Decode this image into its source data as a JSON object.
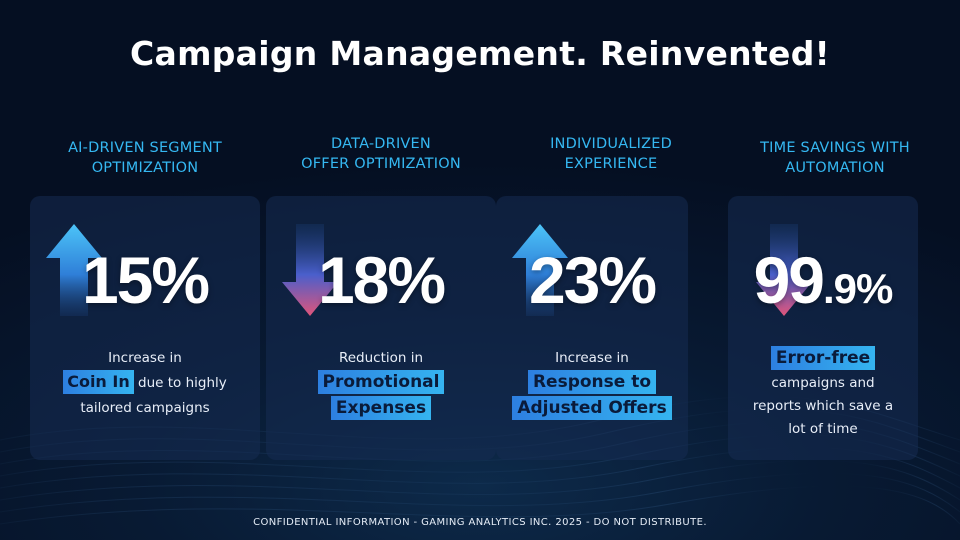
{
  "slide": {
    "title": "Campaign Management. Reinvented!",
    "footer": "CONFIDENTIAL INFORMATION  -  GAMING ANALYTICS INC. 2025  -  DO NOT DISTRIBUTE."
  },
  "metrics": [
    {
      "heading_line1": "AI-DRIVEN SEGMENT",
      "heading_line2": "OPTIMIZATION",
      "value": "15%",
      "direction": "up",
      "desc_line1": "Increase in",
      "highlight1": "Coin In",
      "desc_after_highlight": "due to highly",
      "desc_line3": "tailored campaigns"
    },
    {
      "heading_line1": "DATA-DRIVEN",
      "heading_line2": "OFFER OPTIMIZATION",
      "value": "18%",
      "direction": "down",
      "desc_line1": "Reduction in",
      "highlight1": "Promotional",
      "highlight2": "Expenses"
    },
    {
      "heading_line1": "INDIVIDUALIZED",
      "heading_line2": "EXPERIENCE",
      "value": "23%",
      "direction": "up",
      "desc_line1": "Increase in",
      "highlight1": "Response to",
      "highlight2": "Adjusted Offers"
    },
    {
      "heading_line1": "TIME SAVINGS WITH",
      "heading_line2": "AUTOMATION",
      "value_main": "99",
      "value_decimal": ".9%",
      "direction": "down",
      "highlight1": "Error-free",
      "desc_line2": "campaigns and",
      "desc_line3": "reports which save a",
      "desc_line4": "lot of time"
    }
  ],
  "colors": {
    "heading": "#35b8f2",
    "highlight_start": "#2d7fe0",
    "highlight_end": "#35b4f0",
    "up_arrow": "#38b6f5",
    "down_arrow_tip": "#e0557a",
    "background": "#06142a"
  },
  "icons": {
    "up": "trend-up-arrow-icon",
    "down": "trend-down-arrow-icon"
  }
}
